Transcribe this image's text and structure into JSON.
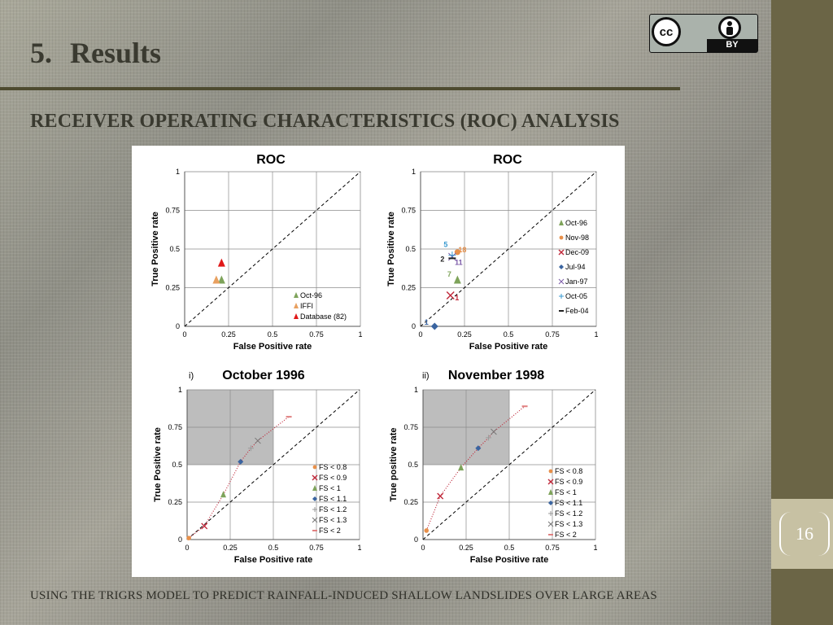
{
  "slide": {
    "section_number": "5.",
    "title": "Results",
    "subtitle": "RECEIVER OPERATING CHARACTERISTICS (ROC) ANALYSIS",
    "footer": "USING THE TRIGRS MODEL TO PREDICT RAINFALL-INDUCED SHALLOW LANDSLIDES OVER LARGE AREAS",
    "page_number": "16"
  },
  "license": {
    "cc": "cc",
    "by": "BY"
  },
  "colors": {
    "sidebar": "#6b6546",
    "pagebox": "#c7c1a3",
    "title": "#3a3a30"
  },
  "chart_data": [
    {
      "type": "scatter",
      "title": "ROC",
      "panel_label": "",
      "xlabel": "False Positive rate",
      "ylabel": "True Positive rate",
      "xlim": [
        0,
        1
      ],
      "ylim": [
        0,
        1
      ],
      "xticks": [
        "0",
        "0.25",
        "0.5",
        "0.75",
        "1"
      ],
      "yticks": [
        "0",
        "0.25",
        "0.5",
        "0.75",
        "1"
      ],
      "grid": true,
      "diagonal": true,
      "legend_position": "bottom-right",
      "series": [
        {
          "name": "Oct-96",
          "color": "#7ea35a",
          "marker": "triangle",
          "x": [
            0.21
          ],
          "y": [
            0.3
          ]
        },
        {
          "name": "IFFI",
          "color": "#e8a060",
          "marker": "triangle",
          "x": [
            0.18
          ],
          "y": [
            0.3
          ]
        },
        {
          "name": "Database (82)",
          "color": "#e01818",
          "marker": "triangle",
          "x": [
            0.21
          ],
          "y": [
            0.41
          ]
        }
      ]
    },
    {
      "type": "scatter",
      "title": "ROC",
      "panel_label": "",
      "xlabel": "False Positive rate",
      "ylabel": "True Positive rate",
      "xlim": [
        0,
        1
      ],
      "ylim": [
        0,
        1
      ],
      "xticks": [
        "0",
        "0.25",
        "0.5",
        "0.75",
        "1"
      ],
      "yticks": [
        "0",
        "0.25",
        "0.5",
        "0.75",
        "1"
      ],
      "grid": true,
      "diagonal": true,
      "legend_position": "right",
      "series": [
        {
          "name": "Oct-96",
          "color": "#7ea35a",
          "marker": "triangle",
          "x": [
            0.21
          ],
          "y": [
            0.3
          ],
          "label": "7"
        },
        {
          "name": "Nov-98",
          "color": "#e8904a",
          "marker": "circle",
          "x": [
            0.21
          ],
          "y": [
            0.48
          ],
          "label": "18"
        },
        {
          "name": "Dec-09",
          "color": "#c0283a",
          "marker": "x",
          "x": [
            0.17
          ],
          "y": [
            0.2
          ],
          "label": "1"
        },
        {
          "name": "Jul-94",
          "color": "#3a64a0",
          "marker": "diamond",
          "x": [
            0.08
          ],
          "y": [
            0.0
          ],
          "label": "1"
        },
        {
          "name": "Jan-97",
          "color": "#7c5ba8",
          "marker": "xcross",
          "x": [
            0.18
          ],
          "y": [
            0.45
          ],
          "label": "11"
        },
        {
          "name": "Oct-05",
          "color": "#3a9ad0",
          "marker": "plus",
          "x": [
            0.18
          ],
          "y": [
            0.46
          ],
          "label": "5"
        },
        {
          "name": "Feb-04",
          "color": "#222222",
          "marker": "dash",
          "x": [
            0.18
          ],
          "y": [
            0.44
          ],
          "label": "2"
        }
      ]
    },
    {
      "type": "line",
      "title": "October 1996",
      "panel_label": "i)",
      "xlabel": "False Positive rate",
      "ylabel": "True Positive rate",
      "xlim": [
        0,
        1
      ],
      "ylim": [
        0,
        1
      ],
      "xticks": [
        "0",
        "0.25",
        "0.5",
        "0.75",
        "1"
      ],
      "yticks": [
        "0",
        "0.25",
        "0.5",
        "0.75",
        "1"
      ],
      "grid": true,
      "diagonal": true,
      "legend_position": "bottom-right",
      "shaded_region": {
        "x": [
          0,
          0.5
        ],
        "y": [
          0.5,
          1
        ]
      },
      "series": [
        {
          "name": "FS < 0.8",
          "color": "#e8904a",
          "marker": "circle",
          "x": [
            0.01
          ],
          "y": [
            0.01
          ]
        },
        {
          "name": "FS < 0.9",
          "color": "#c0283a",
          "marker": "x",
          "x": [
            0.1
          ],
          "y": [
            0.09
          ]
        },
        {
          "name": "FS < 1",
          "color": "#7ea35a",
          "marker": "triangle",
          "x": [
            0.21
          ],
          "y": [
            0.3
          ]
        },
        {
          "name": "FS < 1.1",
          "color": "#3a64a0",
          "marker": "diamond",
          "x": [
            0.31
          ],
          "y": [
            0.52
          ]
        },
        {
          "name": "FS < 1.2",
          "color": "#9a9a9a",
          "marker": "plus",
          "x": [
            0.37
          ],
          "y": [
            0.61
          ]
        },
        {
          "name": "FS < 1.3",
          "color": "#777777",
          "marker": "xcross",
          "x": [
            0.41
          ],
          "y": [
            0.66
          ]
        },
        {
          "name": "FS < 2",
          "color": "#e08080",
          "marker": "dash",
          "x": [
            0.59
          ],
          "y": [
            0.82
          ]
        }
      ]
    },
    {
      "type": "line",
      "title": "November 1998",
      "panel_label": "ii)",
      "xlabel": "False Positive rate",
      "ylabel": "True positive rate",
      "xlim": [
        0,
        1
      ],
      "ylim": [
        0,
        1
      ],
      "xticks": [
        "0",
        "0.25",
        "0.5",
        "0.75",
        "1"
      ],
      "yticks": [
        "0",
        "0.25",
        "0.5",
        "0.75",
        "1"
      ],
      "grid": true,
      "diagonal": true,
      "legend_position": "bottom-right",
      "shaded_region": {
        "x": [
          0,
          0.5
        ],
        "y": [
          0.5,
          1
        ]
      },
      "series": [
        {
          "name": "FS < 0.8",
          "color": "#e8904a",
          "marker": "circle",
          "x": [
            0.02
          ],
          "y": [
            0.06
          ]
        },
        {
          "name": "FS < 0.9",
          "color": "#c0283a",
          "marker": "x",
          "x": [
            0.1
          ],
          "y": [
            0.29
          ]
        },
        {
          "name": "FS < 1",
          "color": "#7ea35a",
          "marker": "triangle",
          "x": [
            0.22
          ],
          "y": [
            0.48
          ]
        },
        {
          "name": "FS < 1.1",
          "color": "#3a64a0",
          "marker": "diamond",
          "x": [
            0.32
          ],
          "y": [
            0.61
          ]
        },
        {
          "name": "FS < 1.2",
          "color": "#9a9a9a",
          "marker": "plus",
          "x": [
            0.38
          ],
          "y": [
            0.68
          ]
        },
        {
          "name": "FS < 1.3",
          "color": "#777777",
          "marker": "xcross",
          "x": [
            0.41
          ],
          "y": [
            0.72
          ]
        },
        {
          "name": "FS < 2",
          "color": "#e08080",
          "marker": "dash",
          "x": [
            0.59
          ],
          "y": [
            0.89
          ]
        }
      ]
    }
  ]
}
